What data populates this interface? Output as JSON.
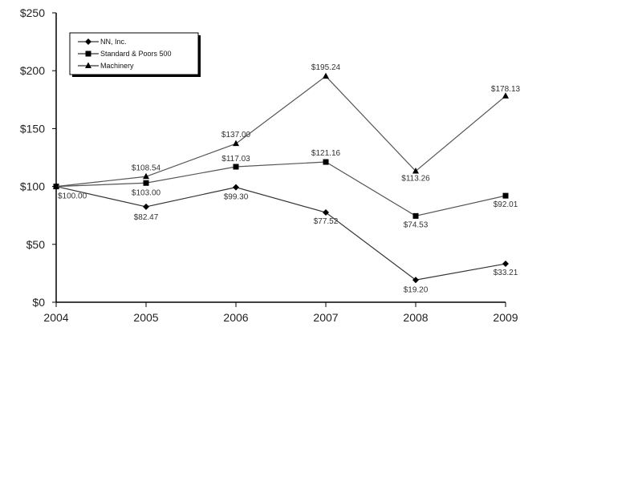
{
  "chart_data": {
    "type": "line",
    "title": "",
    "xlabel": "",
    "ylabel": "",
    "categories": [
      "2004",
      "2005",
      "2006",
      "2007",
      "2008",
      "2009"
    ],
    "ylim": [
      0,
      250
    ],
    "y_ticks": [
      "$0",
      "$50",
      "$100",
      "$150",
      "$200",
      "$250"
    ],
    "y_tick_values": [
      0,
      50,
      100,
      150,
      200,
      250
    ],
    "grid": false,
    "legend_position": "upper-left (inside plot, boxed with shadow)",
    "series": [
      {
        "name": "NN, Inc.",
        "marker": "diamond",
        "values": [
          100.0,
          82.47,
          99.3,
          77.52,
          19.2,
          33.21
        ],
        "labels": [
          "$100.00",
          "$82.47",
          "$99.30",
          "$77.52",
          "$19.20",
          "$33.21"
        ]
      },
      {
        "name": "Standard & Poors 500",
        "marker": "square",
        "values": [
          100.0,
          103.0,
          117.03,
          121.16,
          74.53,
          92.01
        ],
        "labels": [
          "",
          "$103.00",
          "$117.03",
          "$121.16",
          "$74.53",
          "$92.01"
        ]
      },
      {
        "name": "Machinery",
        "marker": "triangle",
        "values": [
          100.0,
          108.54,
          137.0,
          195.24,
          113.26,
          178.13
        ],
        "labels": [
          "",
          "$108.54",
          "$137.00",
          "$195.24",
          "$113.26",
          "$178.13"
        ]
      }
    ]
  }
}
